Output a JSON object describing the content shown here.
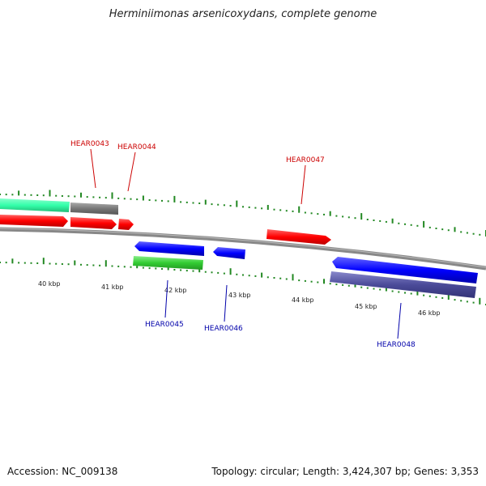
{
  "header": {
    "title": "Herminiimonas arsenicoxydans, complete genome"
  },
  "footer": {
    "accession": "Accession: NC_009138",
    "summary": "Topology: circular; Length: 3,424,307 bp; Genes: 3,353"
  },
  "ticks": [
    "40 kbp",
    "41 kbp",
    "42 kbp",
    "43 kbp",
    "44 kbp",
    "45 kbp",
    "46 kbp"
  ],
  "gene_labels": {
    "forward": [
      "HEAR0043",
      "HEAR0044",
      "HEAR0047"
    ],
    "reverse": [
      "HEAR0045",
      "HEAR0046",
      "HEAR0048"
    ]
  },
  "colors": {
    "forward_label": "#cc0000",
    "reverse_label": "#0000aa",
    "forward_gene": "#ff0000",
    "reverse_gene": "#0000ff",
    "teal_gene": "#33ffaa",
    "grey_gene": "#777777",
    "green_gene": "#33cc33",
    "purple_gene": "#4b4b99",
    "backbone": "#888888",
    "ticks": "#228822"
  }
}
